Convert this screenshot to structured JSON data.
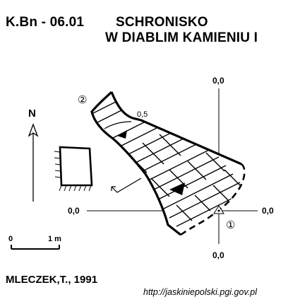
{
  "header": {
    "code": "K.Bn - 06.01",
    "name_line1": "SCHRONISKO",
    "name_line2": "W DIABLIM KAMIENIU I"
  },
  "north": {
    "label": "N"
  },
  "coordinates": {
    "top_upper": "0,0",
    "left": "0,0",
    "right": "0,0",
    "bottom": "0,0",
    "depth_inner": "0,5"
  },
  "markers": {
    "entrance_1": "①",
    "entrance_2": "②"
  },
  "scale": {
    "zero": "0",
    "length": "1 m"
  },
  "footer": {
    "author": "MLECZEK,T., 1991",
    "url": "http://jaskiniepolski.pgi.gov.pl"
  },
  "colors": {
    "ink": "#000000",
    "paper": "#ffffff"
  }
}
